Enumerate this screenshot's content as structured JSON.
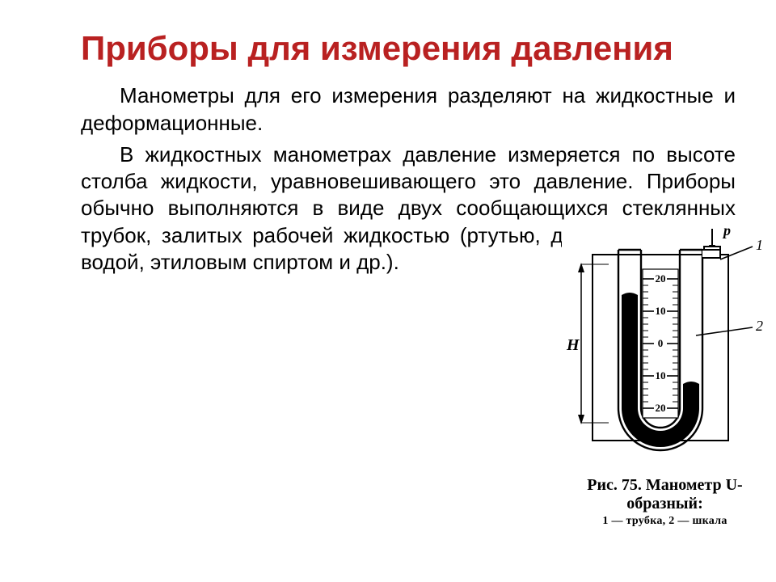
{
  "title": "Приборы для измерения давления",
  "title_color": "#b92121",
  "para1": "Манометры для его измерения разделяют на жидкостные и деформационные.",
  "para2": "В  жидкостных манометрах давление измеряется по высоте столба жидкости, уравновешивающего это давление. Приборы обычно выполняются в виде двух сообщающихся стеклянных трубок, залитых рабочей жидкостью (ртутью, дистиллированной водой, этиловым спиртом и др.).",
  "body_color": "#000000",
  "figure": {
    "caption_title": "Рис. 75. Манометр U-образный:",
    "caption_sub": "1 — трубка, 2 — шка­ла",
    "label_p": "p",
    "label_H": "H",
    "lead_1": "1",
    "lead_2": "2",
    "scale_ticks": [
      "20",
      "10",
      "0",
      "10",
      "20"
    ],
    "styling": {
      "stroke": "#000000",
      "liquid_fill": "#000000",
      "background": "#ffffff",
      "stroke_width_main": 2,
      "font_family": "Times New Roman, serif",
      "tick_fontsize": 12,
      "label_fontsize": 16,
      "lead_fontsize": 16
    }
  }
}
